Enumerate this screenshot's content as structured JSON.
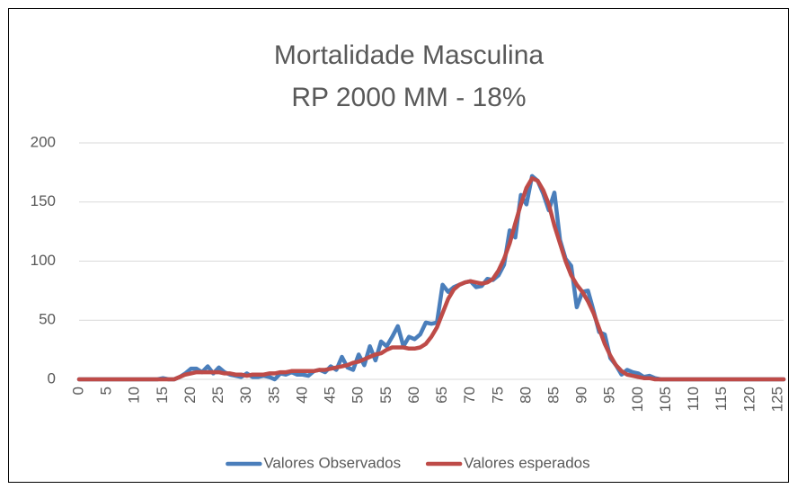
{
  "chart_data": {
    "type": "line",
    "title": "Mortalidade Masculina",
    "subtitle": "RP 2000 MM - 18%",
    "x": [
      0,
      1,
      2,
      3,
      4,
      5,
      6,
      7,
      8,
      9,
      10,
      11,
      12,
      13,
      14,
      15,
      16,
      17,
      18,
      19,
      20,
      21,
      22,
      23,
      24,
      25,
      26,
      27,
      28,
      29,
      30,
      31,
      32,
      33,
      34,
      35,
      36,
      37,
      38,
      39,
      40,
      41,
      42,
      43,
      44,
      45,
      46,
      47,
      48,
      49,
      50,
      51,
      52,
      53,
      54,
      55,
      56,
      57,
      58,
      59,
      60,
      61,
      62,
      63,
      64,
      65,
      66,
      67,
      68,
      69,
      70,
      71,
      72,
      73,
      74,
      75,
      76,
      77,
      78,
      79,
      80,
      81,
      82,
      83,
      84,
      85,
      86,
      87,
      88,
      89,
      90,
      91,
      92,
      93,
      94,
      95,
      96,
      97,
      98,
      99,
      100,
      101,
      102,
      103,
      104,
      105,
      106,
      107,
      108,
      109,
      110,
      111,
      112,
      113,
      114,
      115,
      116,
      117,
      118,
      119,
      120,
      121,
      122,
      123,
      124,
      125,
      126
    ],
    "series": [
      {
        "name": "Valores Observados",
        "color": "#4a7ebb",
        "values": [
          0,
          0,
          0,
          0,
          0,
          0,
          0,
          0,
          0,
          0,
          0,
          0,
          0,
          0,
          0,
          1,
          0,
          0,
          2,
          5,
          9,
          9,
          6,
          11,
          5,
          10,
          6,
          4,
          3,
          2,
          5,
          2,
          2,
          3,
          2,
          0,
          5,
          4,
          6,
          4,
          4,
          3,
          7,
          8,
          6,
          11,
          8,
          19,
          10,
          8,
          21,
          12,
          28,
          16,
          32,
          28,
          36,
          45,
          28,
          36,
          34,
          38,
          48,
          47,
          48,
          80,
          74,
          78,
          80,
          82,
          83,
          78,
          79,
          85,
          84,
          88,
          97,
          126,
          120,
          156,
          148,
          172,
          168,
          157,
          143,
          158,
          118,
          102,
          96,
          61,
          74,
          75,
          58,
          40,
          38,
          18,
          12,
          4,
          8,
          6,
          5,
          2,
          3,
          1,
          0,
          0,
          0,
          0,
          0,
          0,
          0,
          0,
          0,
          0,
          0,
          0,
          0,
          0,
          0,
          0,
          0,
          0,
          0,
          0,
          0,
          0,
          0
        ]
      },
      {
        "name": "Valores esperados",
        "color": "#be4b48",
        "values": [
          0,
          0,
          0,
          0,
          0,
          0,
          0,
          0,
          0,
          0,
          0,
          0,
          0,
          0,
          0,
          0,
          0,
          0,
          2,
          4,
          5,
          6,
          6,
          6,
          6,
          6,
          5,
          5,
          4,
          4,
          3,
          4,
          4,
          4,
          5,
          5,
          6,
          6,
          7,
          7,
          7,
          7,
          7,
          8,
          8,
          9,
          10,
          11,
          12,
          14,
          15,
          17,
          19,
          21,
          22,
          25,
          27,
          27,
          27,
          26,
          26,
          27,
          30,
          36,
          44,
          56,
          68,
          76,
          80,
          82,
          83,
          82,
          81,
          82,
          85,
          92,
          102,
          115,
          132,
          148,
          162,
          170,
          168,
          160,
          148,
          130,
          115,
          100,
          88,
          80,
          74,
          66,
          56,
          43,
          30,
          20,
          12,
          7,
          4,
          3,
          2,
          1,
          1,
          0,
          0,
          0,
          0,
          0,
          0,
          0,
          0,
          0,
          0,
          0,
          0,
          0,
          0,
          0,
          0,
          0,
          0,
          0,
          0,
          0,
          0,
          0,
          0
        ]
      }
    ],
    "xlim": [
      0,
      126
    ],
    "xticks": [
      0,
      5,
      10,
      15,
      20,
      25,
      30,
      35,
      40,
      45,
      50,
      55,
      60,
      65,
      70,
      75,
      80,
      85,
      90,
      95,
      100,
      105,
      110,
      115,
      120,
      125
    ],
    "ylim": [
      0,
      200
    ],
    "yticks": [
      0,
      50,
      100,
      150,
      200
    ],
    "grid": true,
    "legend": "bottom"
  }
}
